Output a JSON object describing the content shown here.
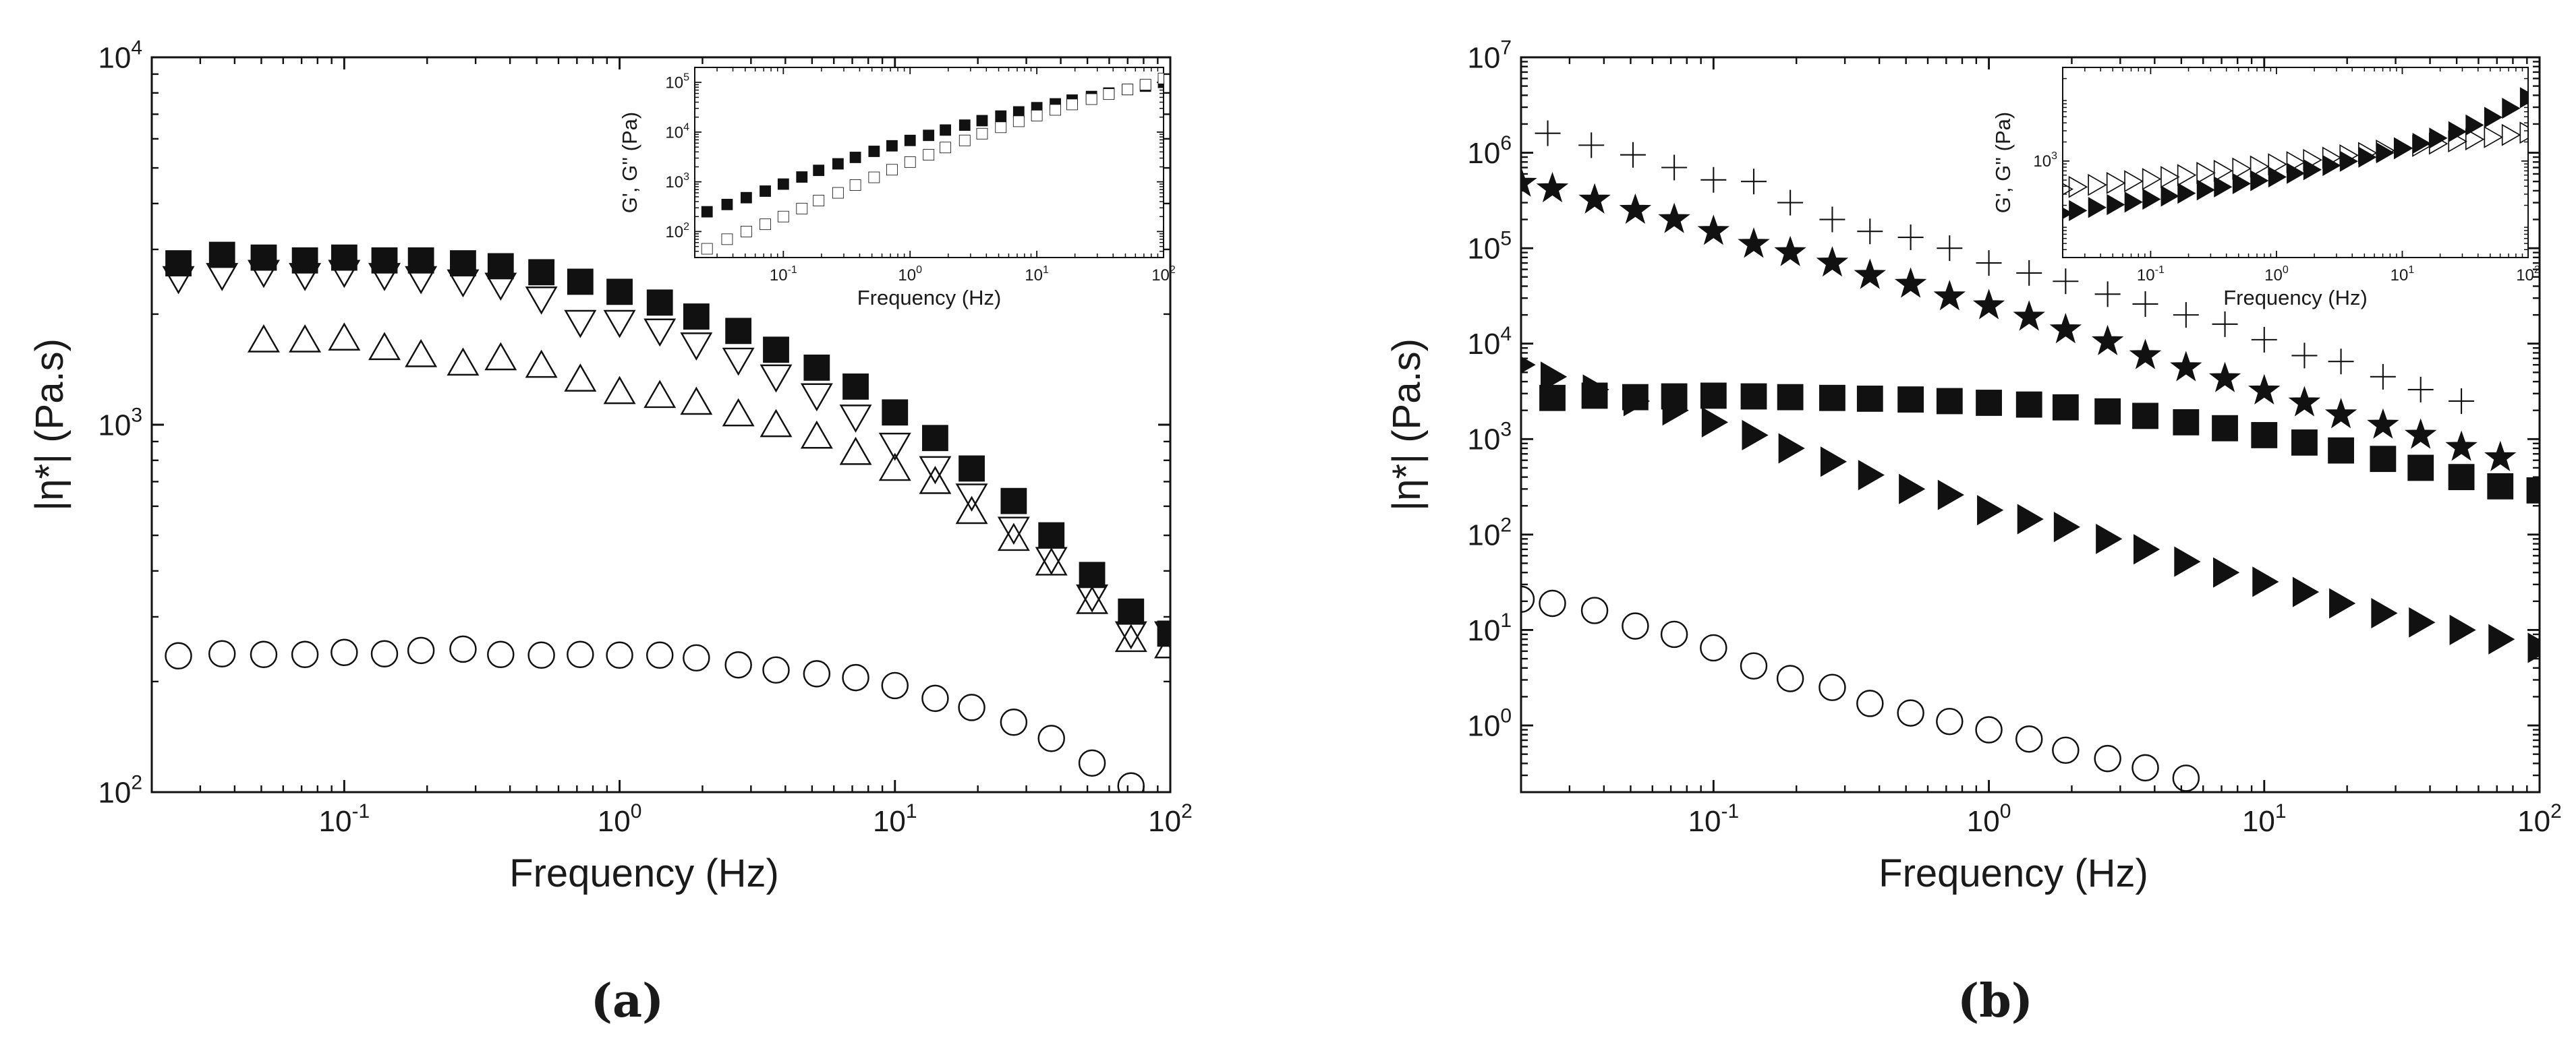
{
  "figure": {
    "panels": [
      "(a)",
      "(b)"
    ]
  },
  "colors": {
    "ink": "#111111",
    "open": "#ffffff"
  },
  "chart_data": [
    {
      "id": "a",
      "caption": "(a)",
      "type": "scatter",
      "scale": "log-log",
      "xlabel": "Frequency (Hz)",
      "ylabel": "|η*| (Pa.s)",
      "xlim": [
        0.02,
        100
      ],
      "ylim": [
        100,
        10000
      ],
      "x_ticks": [
        "10-1",
        "100",
        "101",
        "102"
      ],
      "y_ticks": [
        "102",
        "103",
        "104"
      ],
      "series": [
        {
          "name": "filled squares",
          "marker": "square-filled",
          "x": [
            0.025,
            0.036,
            0.051,
            0.072,
            0.1,
            0.14,
            0.19,
            0.27,
            0.37,
            0.52,
            0.72,
            1.0,
            1.4,
            1.9,
            2.7,
            3.7,
            5.2,
            7.2,
            10,
            14,
            19,
            27,
            37,
            52,
            72,
            100
          ],
          "y": [
            2750,
            2900,
            2850,
            2800,
            2850,
            2800,
            2800,
            2750,
            2700,
            2600,
            2450,
            2300,
            2150,
            1970,
            1800,
            1600,
            1430,
            1270,
            1080,
            920,
            760,
            620,
            500,
            390,
            310,
            270
          ]
        },
        {
          "name": "open down triangles",
          "marker": "tri-down-open",
          "x": [
            0.025,
            0.036,
            0.051,
            0.072,
            0.1,
            0.14,
            0.19,
            0.27,
            0.37,
            0.52,
            0.72,
            1.0,
            1.4,
            1.9,
            2.7,
            3.7,
            5.2,
            7.2,
            10,
            14,
            19,
            27,
            37,
            52,
            72,
            100
          ],
          "y": [
            2500,
            2550,
            2600,
            2550,
            2600,
            2550,
            2500,
            2450,
            2400,
            2200,
            1900,
            1900,
            1800,
            1650,
            1500,
            1350,
            1200,
            1050,
            880,
            760,
            640,
            520,
            430,
            340,
            270,
            270
          ]
        },
        {
          "name": "open up triangles",
          "marker": "tri-up-open",
          "x": [
            0.051,
            0.072,
            0.1,
            0.14,
            0.19,
            0.27,
            0.37,
            0.52,
            0.72,
            1.0,
            1.4,
            1.9,
            2.7,
            3.7,
            5.2,
            7.2,
            10,
            14,
            19,
            27,
            37,
            52,
            72,
            100
          ],
          "y": [
            1700,
            1700,
            1720,
            1620,
            1550,
            1470,
            1520,
            1450,
            1330,
            1230,
            1200,
            1150,
            1070,
            1000,
            930,
            840,
            760,
            700,
            580,
            490,
            420,
            330,
            260,
            250
          ]
        },
        {
          "name": "open circles",
          "marker": "circle-open",
          "x": [
            0.025,
            0.036,
            0.051,
            0.072,
            0.1,
            0.14,
            0.19,
            0.27,
            0.37,
            0.52,
            0.72,
            1.0,
            1.4,
            1.9,
            2.7,
            3.7,
            5.2,
            7.2,
            10,
            14,
            19,
            27,
            37,
            52,
            72
          ],
          "y": [
            235,
            238,
            237,
            237,
            240,
            238,
            243,
            245,
            237,
            236,
            237,
            236,
            236,
            232,
            222,
            215,
            210,
            205,
            195,
            180,
            170,
            155,
            140,
            120,
            104
          ]
        }
      ],
      "inset": {
        "xlabel": "Frequency (Hz)",
        "ylabel": "G', G'' (Pa)",
        "xlim": [
          0.02,
          100
        ],
        "ylim": [
          30,
          200000
        ],
        "x_ticks": [
          "10-1",
          "100",
          "101",
          "102"
        ],
        "y_ticks": [
          "102",
          "103",
          "104",
          "105"
        ],
        "series": [
          {
            "name": "G' (filled)",
            "marker": "square-filled",
            "x": [
              0.025,
              0.036,
              0.051,
              0.072,
              0.1,
              0.14,
              0.19,
              0.27,
              0.37,
              0.52,
              0.72,
              1.0,
              1.4,
              1.9,
              2.7,
              3.7,
              5.2,
              7.2,
              10,
              14,
              19,
              27,
              37,
              52,
              72,
              100
            ],
            "y": [
              250,
              350,
              480,
              650,
              900,
              1250,
              1700,
              2300,
              3100,
              4100,
              5300,
              6800,
              8600,
              11000,
              13800,
              17000,
              21000,
              25500,
              31000,
              37000,
              44000,
              52000,
              61000,
              72000,
              84000,
              100000
            ]
          },
          {
            "name": "G'' (open)",
            "marker": "square-open",
            "x": [
              0.025,
              0.036,
              0.051,
              0.072,
              0.1,
              0.14,
              0.19,
              0.27,
              0.37,
              0.52,
              0.72,
              1.0,
              1.4,
              1.9,
              2.7,
              3.7,
              5.2,
              7.2,
              10,
              14,
              19,
              27,
              37,
              52,
              72,
              100
            ],
            "y": [
              45,
              70,
              100,
              140,
              200,
              290,
              420,
              600,
              860,
              1230,
              1750,
              2500,
              3500,
              4900,
              6800,
              9300,
              12500,
              16500,
              21500,
              28000,
              36000,
              46000,
              58000,
              72000,
              90000,
              120000
            ]
          }
        ]
      }
    },
    {
      "id": "b",
      "caption": "(b)",
      "type": "scatter",
      "scale": "log-log",
      "xlabel": "Frequency (Hz)",
      "ylabel": "|η*| (Pa.s)",
      "xlim": [
        0.02,
        100
      ],
      "ylim": [
        0.2,
        10000000
      ],
      "x_ticks": [
        "10-1",
        "100",
        "101",
        "102"
      ],
      "y_ticks": [
        "100",
        "101",
        "102",
        "103",
        "104",
        "105",
        "106",
        "107"
      ],
      "series": [
        {
          "name": "plus",
          "marker": "plus",
          "x": [
            0.025,
            0.036,
            0.051,
            0.072,
            0.1,
            0.14,
            0.19,
            0.27,
            0.37,
            0.52,
            0.72,
            1.0,
            1.4,
            1.9,
            2.7,
            3.7,
            5.2,
            7.2,
            10,
            14,
            19,
            27,
            37,
            52
          ],
          "y": [
            1600000,
            1200000,
            950000,
            700000,
            520000,
            500000,
            300000,
            200000,
            150000,
            130000,
            100000,
            70000,
            55000,
            45000,
            33000,
            26000,
            20000,
            16000,
            11000,
            7500,
            6500,
            4500,
            3300,
            2500
          ]
        },
        {
          "name": "filled stars",
          "marker": "star-filled",
          "x": [
            0.02,
            0.026,
            0.037,
            0.052,
            0.072,
            0.1,
            0.14,
            0.19,
            0.27,
            0.37,
            0.52,
            0.72,
            1.0,
            1.4,
            1.9,
            2.7,
            3.7,
            5.2,
            7.2,
            10,
            14,
            19,
            27,
            37,
            52,
            72
          ],
          "y": [
            480000,
            420000,
            320000,
            250000,
            200000,
            150000,
            110000,
            90000,
            70000,
            52000,
            42000,
            31000,
            25000,
            19000,
            14000,
            10500,
            7500,
            5600,
            4300,
            3200,
            2400,
            1800,
            1400,
            1100,
            820,
            640
          ]
        },
        {
          "name": "filled squares",
          "marker": "square-filled",
          "x": [
            0.026,
            0.037,
            0.052,
            0.072,
            0.1,
            0.14,
            0.19,
            0.27,
            0.37,
            0.52,
            0.72,
            1.0,
            1.4,
            1.9,
            2.7,
            3.7,
            5.2,
            7.2,
            10,
            14,
            19,
            27,
            37,
            52,
            72,
            100
          ],
          "y": [
            2700,
            2850,
            2750,
            2800,
            2850,
            2800,
            2750,
            2700,
            2650,
            2600,
            2500,
            2400,
            2300,
            2150,
            1950,
            1750,
            1500,
            1300,
            1100,
            920,
            760,
            620,
            500,
            400,
            320,
            290
          ]
        },
        {
          "name": "filled right triangles",
          "marker": "tri-right-filled",
          "x": [
            0.02,
            0.026,
            0.037,
            0.052,
            0.072,
            0.1,
            0.14,
            0.19,
            0.27,
            0.37,
            0.52,
            0.72,
            1.0,
            1.4,
            1.9,
            2.7,
            3.7,
            5.2,
            7.2,
            10,
            14,
            19,
            27,
            37,
            52,
            72,
            100
          ],
          "y": [
            6000,
            4500,
            3300,
            2500,
            2000,
            1500,
            1100,
            800,
            580,
            420,
            300,
            260,
            180,
            145,
            120,
            90,
            70,
            52,
            40,
            32,
            25,
            19,
            15,
            12,
            10,
            8,
            6.5
          ]
        },
        {
          "name": "open circles",
          "marker": "circle-open",
          "x": [
            0.02,
            0.026,
            0.037,
            0.052,
            0.072,
            0.1,
            0.14,
            0.19,
            0.27,
            0.37,
            0.52,
            0.72,
            1.0,
            1.4,
            1.9,
            2.7,
            3.7,
            5.2
          ],
          "y": [
            21,
            19,
            16,
            11,
            9,
            6.5,
            4.2,
            3.1,
            2.5,
            1.7,
            1.35,
            1.1,
            0.9,
            0.72,
            0.55,
            0.45,
            0.36,
            0.28
          ]
        }
      ],
      "inset": {
        "xlabel": "Frequency (Hz)",
        "ylabel": "G', G'' (Pa)",
        "xlim": [
          0.02,
          100
        ],
        "ylim": [
          30,
          30000
        ],
        "x_ticks": [
          "10-1",
          "100",
          "101",
          "102"
        ],
        "y_ticks": [
          "103"
        ],
        "series": [
          {
            "name": "G' (filled)",
            "marker": "tri-right-filled",
            "x": [
              0.02,
              0.026,
              0.037,
              0.052,
              0.072,
              0.1,
              0.14,
              0.19,
              0.27,
              0.37,
              0.52,
              0.72,
              1.0,
              1.4,
              1.9,
              2.7,
              3.7,
              5.2,
              7.2,
              10,
              14,
              19,
              27,
              37,
              52,
              72,
              100
            ],
            "y": [
              150,
              165,
              185,
              205,
              225,
              250,
              280,
              310,
              350,
              390,
              440,
              490,
              560,
              640,
              730,
              850,
              990,
              1150,
              1350,
              1600,
              1900,
              2300,
              2900,
              3700,
              4900,
              6800,
              10000
            ]
          },
          {
            "name": "G'' (open)",
            "marker": "tri-right-open",
            "x": [
              0.02,
              0.026,
              0.037,
              0.052,
              0.072,
              0.1,
              0.14,
              0.19,
              0.27,
              0.37,
              0.52,
              0.72,
              1.0,
              1.4,
              1.9,
              2.7,
              3.7,
              5.2,
              7.2,
              10,
              14,
              19,
              27,
              37,
              52,
              72,
              100
            ],
            "y": [
              360,
              390,
              420,
              450,
              480,
              520,
              560,
              600,
              650,
              700,
              760,
              820,
              890,
              960,
              1040,
              1130,
              1230,
              1340,
              1460,
              1590,
              1730,
              1880,
              2040,
              2200,
              2380,
              2580,
              2800
            ]
          }
        ]
      }
    }
  ]
}
